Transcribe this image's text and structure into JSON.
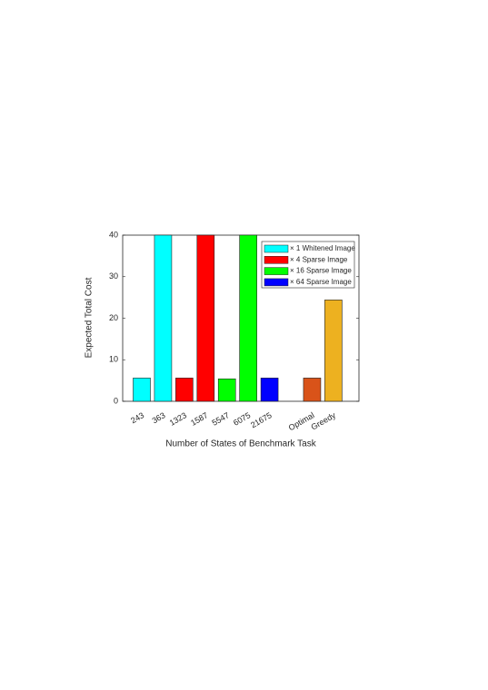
{
  "chart_data": {
    "type": "bar",
    "categories": [
      "243",
      "363",
      "1323",
      "1587",
      "5547",
      "6075",
      "21675",
      null,
      "Optimal",
      "Greedy"
    ],
    "values": [
      5.6,
      40,
      5.6,
      40,
      5.4,
      40,
      5.6,
      null,
      5.6,
      24.4
    ],
    "colors": [
      "#00ffff",
      "#00ffff",
      "#ff0000",
      "#ff0000",
      "#00ff00",
      "#00ff00",
      "#0000ff",
      null,
      "#d95319",
      "#edb120"
    ],
    "legend": [
      {
        "name": "× 1 Whitened Image",
        "color": "#00ffff"
      },
      {
        "name": "× 4 Sparse Image",
        "color": "#ff0000"
      },
      {
        "name": "× 16 Sparse Image",
        "color": "#00ff00"
      },
      {
        "name": "× 64 Sparse Image",
        "color": "#0000ff"
      }
    ],
    "xlabel": "Number of States of Benchmark Task",
    "ylabel": "Expected Total Cost",
    "ylim": [
      0,
      40
    ],
    "yticks": [
      0,
      10,
      20,
      30,
      40
    ],
    "grid": false,
    "legend_position": "upper right"
  }
}
